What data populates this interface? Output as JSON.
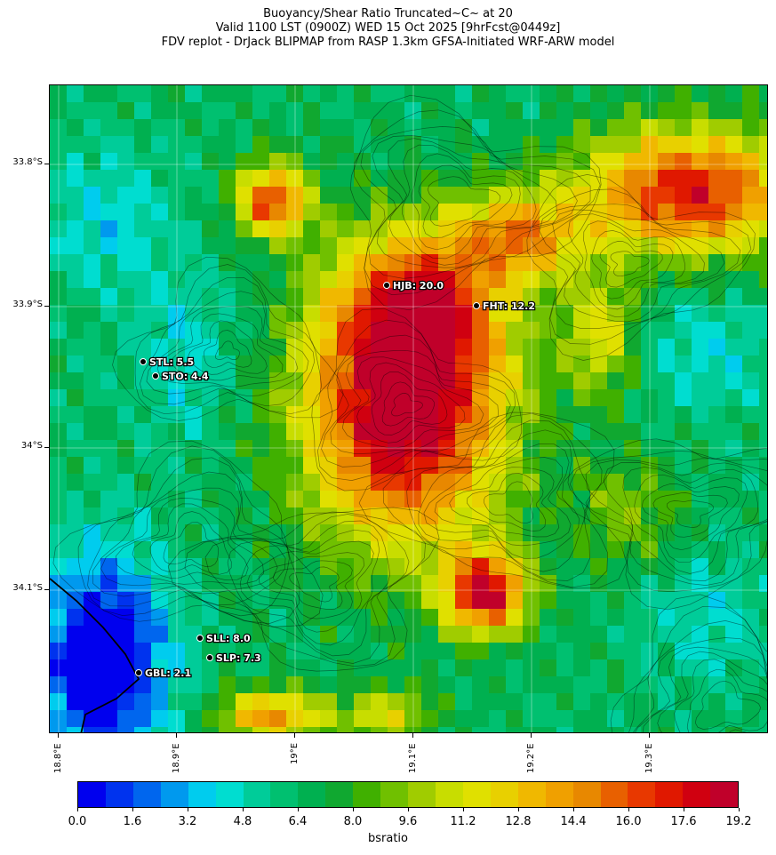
{
  "title": {
    "line1": "Buoyancy/Shear Ratio Truncated~C~    at 20",
    "line2": "Valid 1100 LST (0900Z) WED 15 Oct 2025 [9hrFcst@0449z]",
    "line3": "FDV replot - DrJack BLIPMAP from RASP 1.3km GFSA-Initiated WRF-ARW model"
  },
  "map": {
    "lat_labels": [
      "33.8°S",
      "33.9°S",
      "34°S",
      "34.1°S"
    ],
    "lon_labels": [
      "18.8°E",
      "18.9°E",
      "19°E",
      "19.1°E",
      "19.2°E",
      "19.3°E"
    ],
    "stations": [
      {
        "id": "HJB",
        "label": "HJB: 20.0",
        "value": 20.0
      },
      {
        "id": "FHT",
        "label": "FHT: 12.2",
        "value": 12.2
      },
      {
        "id": "STL",
        "label": "STL: 5.5",
        "value": 5.5
      },
      {
        "id": "STO",
        "label": "STO: 4.4",
        "value": 4.4
      },
      {
        "id": "SLL",
        "label": "SLL: 8.0",
        "value": 8.0
      },
      {
        "id": "SLP",
        "label": "SLP: 7.3",
        "value": 7.3
      },
      {
        "id": "GBL",
        "label": "GBL: 2.1",
        "value": 2.1
      }
    ]
  },
  "colorbar": {
    "title": "bsratio",
    "tick_labels": [
      "0.0",
      "1.6",
      "3.2",
      "4.8",
      "6.4",
      "8.0",
      "9.6",
      "11.2",
      "12.8",
      "14.4",
      "16.0",
      "17.6",
      "19.2"
    ],
    "colors": [
      "#0000ee",
      "#0033ee",
      "#0066ee",
      "#0099ee",
      "#00ccee",
      "#00ddd0",
      "#00cc99",
      "#00c070",
      "#00b050",
      "#10a830",
      "#40b000",
      "#70c000",
      "#a0cc00",
      "#c8dd00",
      "#e0e000",
      "#e8d000",
      "#f0b800",
      "#f0a000",
      "#e88800",
      "#e86000",
      "#e83800",
      "#e01800",
      "#d00010",
      "#c0002a"
    ]
  }
}
